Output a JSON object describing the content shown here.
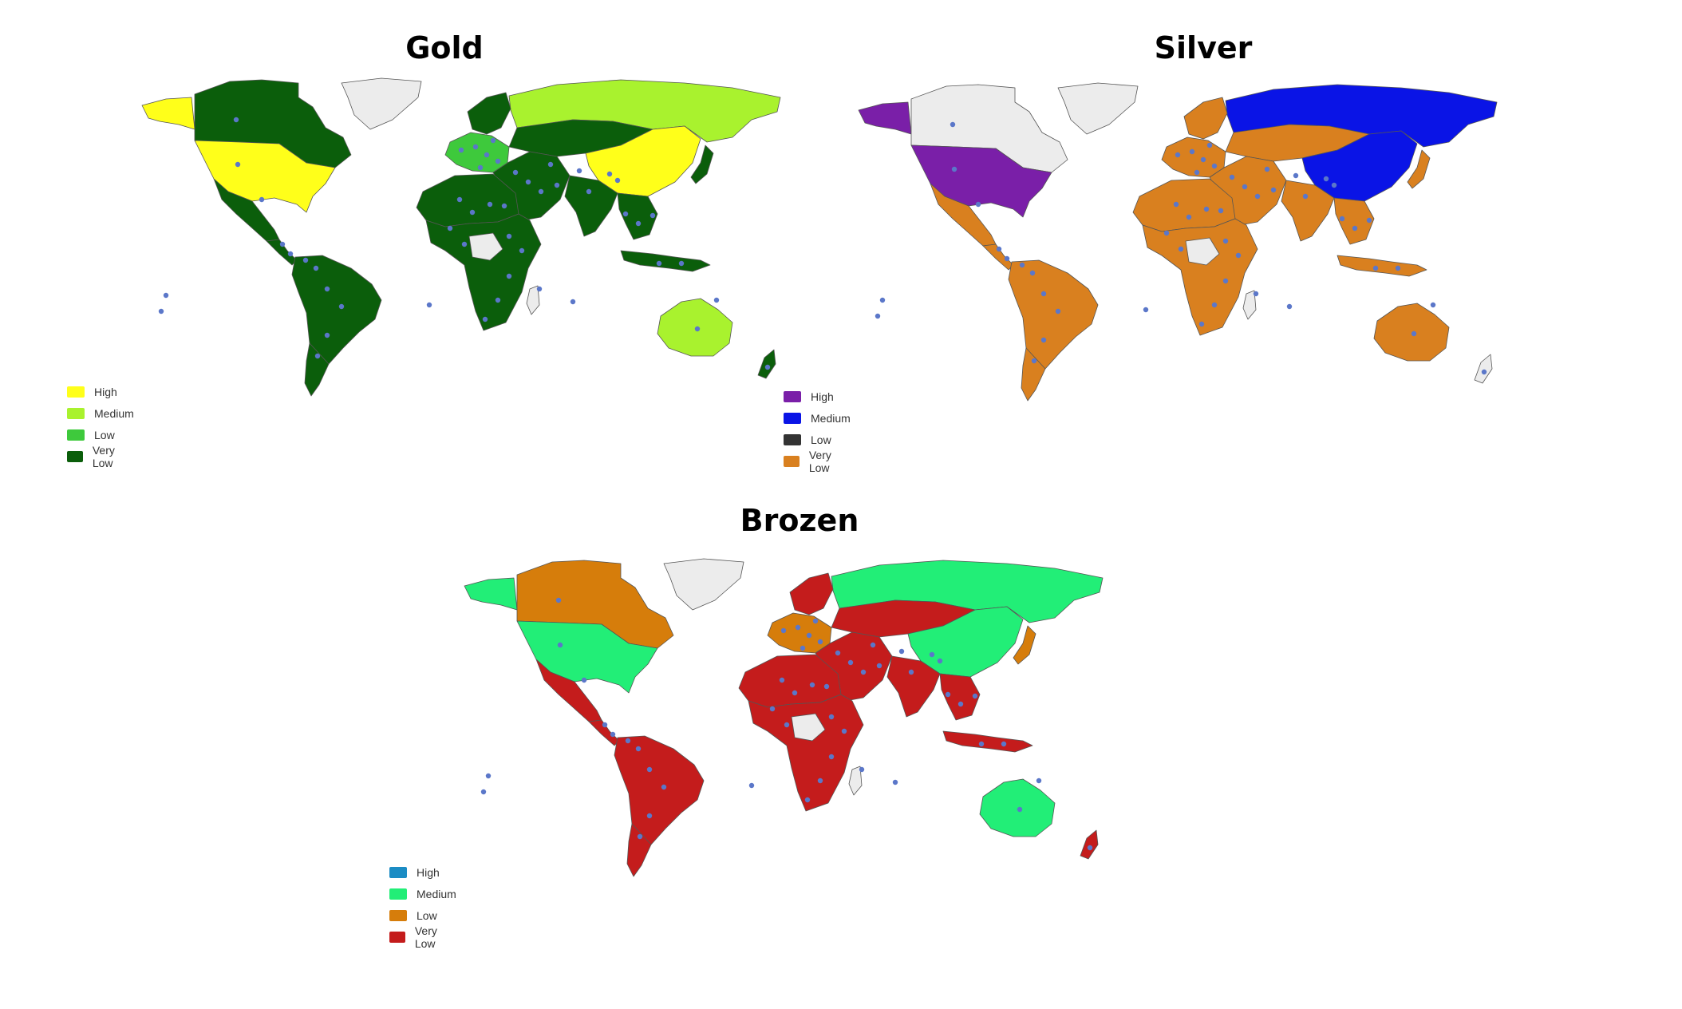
{
  "panels": [
    {
      "title": "Gold",
      "legend": [
        {
          "label": "High",
          "color": "#ffff1a"
        },
        {
          "label": "Medium",
          "color": "#a9f22e"
        },
        {
          "label": "Low",
          "color": "#3ec93c"
        },
        {
          "label": "Very Low",
          "color": "#0b5e0b"
        }
      ],
      "region_levels": {
        "alaska": "High",
        "canada": "Very Low",
        "usa": "High",
        "greenland": "None",
        "mexico": "Very Low",
        "central_america": "Very Low",
        "south_america": "Very Low",
        "patagonia": "Very Low",
        "europe": "Low",
        "scandinavia": "Very Low",
        "russia": "Medium",
        "central_asia": "Very Low",
        "middle_east": "Very Low",
        "china": "High",
        "india": "Very Low",
        "southeast_asia": "Very Low",
        "north_africa": "Very Low",
        "africa_body": "Very Low",
        "africa_gap": "None",
        "madagascar": "None",
        "australia": "Medium",
        "new_zealand": "Very Low",
        "japan": "Very Low",
        "indonesia": "Very Low"
      }
    },
    {
      "title": "Silver",
      "legend": [
        {
          "label": "High",
          "color": "#7a1fa8"
        },
        {
          "label": "Medium",
          "color": "#0a14e6"
        },
        {
          "label": "Low",
          "color": "#333333"
        },
        {
          "label": "Very Low",
          "color": "#d9801f"
        }
      ],
      "region_levels": {
        "alaska": "High",
        "canada": "None",
        "usa": "High",
        "greenland": "None",
        "mexico": "Very Low",
        "central_america": "Very Low",
        "south_america": "Very Low",
        "patagonia": "Very Low",
        "europe": "Very Low",
        "scandinavia": "Very Low",
        "russia": "Medium",
        "central_asia": "Very Low",
        "middle_east": "Very Low",
        "china": "Medium",
        "india": "Very Low",
        "southeast_asia": "Very Low",
        "north_africa": "Very Low",
        "africa_body": "Very Low",
        "africa_gap": "None",
        "madagascar": "None",
        "australia": "Very Low",
        "new_zealand": "None",
        "japan": "Very Low",
        "indonesia": "Very Low"
      }
    },
    {
      "title": "Brozen",
      "legend": [
        {
          "label": "High",
          "color": "#1b8cc4"
        },
        {
          "label": "Medium",
          "color": "#22ee77"
        },
        {
          "label": "Low",
          "color": "#d67d0b"
        },
        {
          "label": "Very Low",
          "color": "#c41c1c"
        }
      ],
      "region_levels": {
        "alaska": "Medium",
        "canada": "Low",
        "usa": "Medium",
        "greenland": "None",
        "mexico": "Very Low",
        "central_america": "Very Low",
        "south_america": "Very Low",
        "patagonia": "Very Low",
        "europe": "Low",
        "scandinavia": "Very Low",
        "russia": "Medium",
        "central_asia": "Very Low",
        "middle_east": "Very Low",
        "china": "Medium",
        "india": "Very Low",
        "southeast_asia": "Very Low",
        "north_africa": "Very Low",
        "africa_body": "Very Low",
        "africa_gap": "None",
        "madagascar": "None",
        "australia": "Medium",
        "new_zealand": "Very Low",
        "japan": "Low",
        "indonesia": "Very Low"
      }
    }
  ],
  "no_data_color": "#ececec",
  "marker_color": "#5b77c9"
}
